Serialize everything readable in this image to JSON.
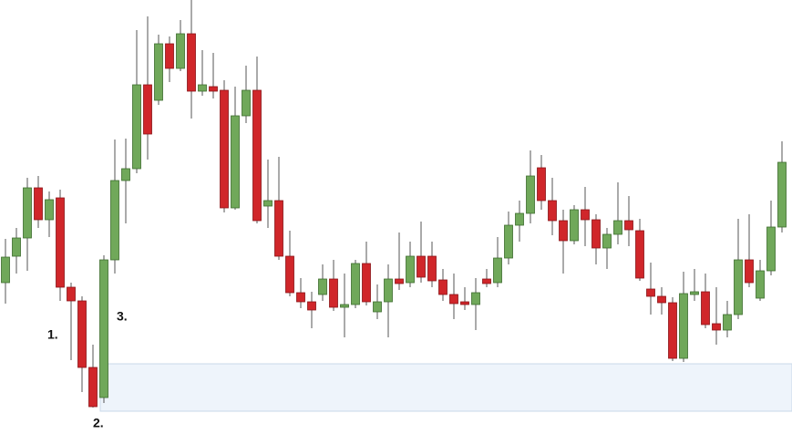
{
  "chart_data": {
    "type": "candlestick",
    "open": [
      166,
      195,
      215,
      270,
      235,
      259,
      161,
      146,
      73,
      40,
      191,
      278,
      291,
      383,
      366,
      428,
      401,
      439,
      376,
      381,
      377,
      248,
      349,
      377,
      250,
      256,
      195,
      155,
      145,
      153,
      170,
      139,
      142,
      187,
      134,
      145,
      170,
      166,
      195,
      195,
      169,
      153,
      145,
      142,
      170,
      166,
      193,
      229,
      242,
      292,
      256,
      234,
      212,
      246,
      235,
      204,
      219,
      234,
      223,
      159,
      151,
      144,
      83,
      153,
      156,
      121,
      114,
      131,
      191,
      149,
      179,
      227
    ],
    "high": [
      214,
      226,
      281,
      283,
      266,
      268,
      166,
      151,
      98,
      196,
      323,
      324,
      443,
      458,
      438,
      436,
      454,
      476,
      421,
      418,
      388,
      381,
      404,
      414,
      301,
      304,
      223,
      171,
      156,
      186,
      191,
      176,
      191,
      211,
      164,
      186,
      221,
      211,
      233,
      211,
      181,
      176,
      161,
      171,
      181,
      216,
      244,
      256,
      311,
      306,
      281,
      246,
      251,
      271,
      241,
      226,
      276,
      261,
      236,
      188,
      161,
      150,
      178,
      181,
      176,
      161,
      146,
      236,
      241,
      191,
      256,
      321
    ],
    "low": [
      143,
      176,
      179,
      226,
      216,
      146,
      81,
      46,
      29,
      34,
      176,
      231,
      286,
      301,
      361,
      386,
      398,
      346,
      371,
      368,
      243,
      246,
      341,
      231,
      226,
      191,
      151,
      138,
      116,
      146,
      135,
      106,
      138,
      141,
      126,
      106,
      158,
      161,
      166,
      161,
      146,
      126,
      136,
      114,
      161,
      161,
      186,
      211,
      231,
      246,
      218,
      176,
      208,
      206,
      186,
      181,
      208,
      206,
      168,
      131,
      131,
      80,
      79,
      146,
      116,
      98,
      106,
      126,
      161,
      146,
      174,
      221
    ],
    "close": [
      194,
      215,
      270,
      235,
      257,
      161,
      146,
      73,
      30,
      191,
      278,
      291,
      383,
      329,
      428,
      401,
      439,
      376,
      383,
      376,
      248,
      349,
      377,
      234,
      256,
      195,
      155,
      145,
      136,
      170,
      139,
      142,
      187,
      145,
      145,
      170,
      165,
      195,
      172,
      168,
      153,
      143,
      142,
      155,
      165,
      193,
      229,
      242,
      283,
      256,
      234,
      212,
      246,
      235,
      204,
      219,
      234,
      224,
      171,
      151,
      144,
      83,
      154,
      156,
      120,
      114,
      131,
      191,
      166,
      179,
      227,
      298
    ],
    "up_color": "#70a85a",
    "down_color": "#d0262a",
    "ylim": [
      0,
      476
    ],
    "zone": {
      "low": 25,
      "high": 77,
      "start_index": 9
    },
    "annotations": [
      "1.",
      "2.",
      "3."
    ]
  }
}
